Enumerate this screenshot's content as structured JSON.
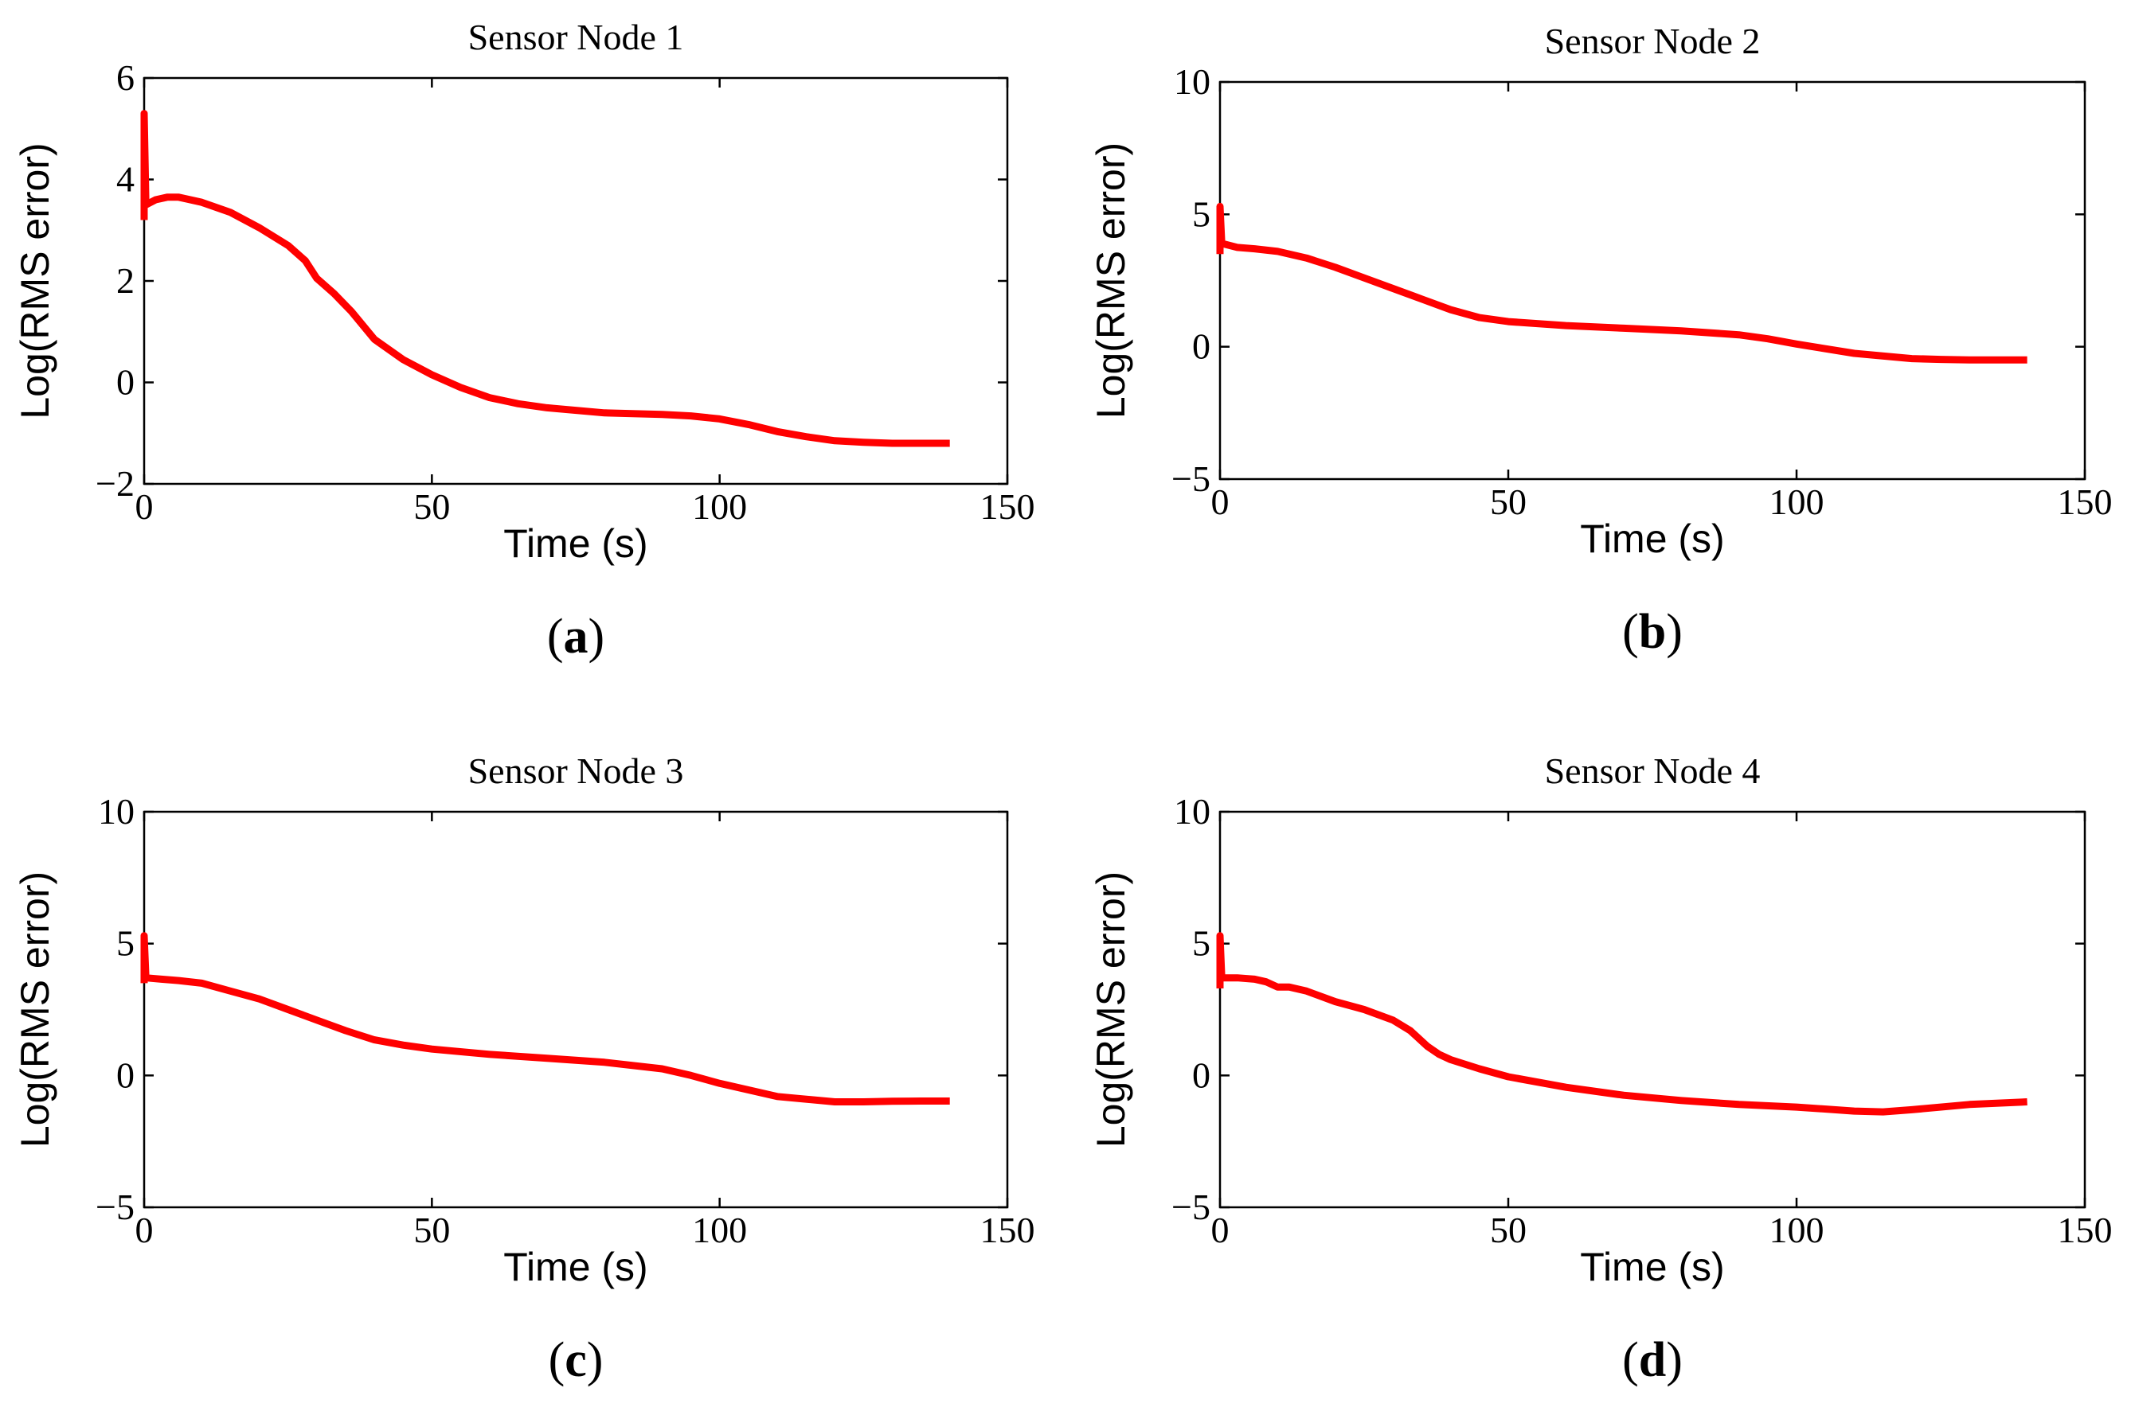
{
  "colors": {
    "series": "#ff0000",
    "axes": "#000000",
    "background": "#ffffff"
  },
  "chart_data": [
    {
      "type": "line",
      "title": "Sensor Node 1",
      "xlabel": "Time (s)",
      "ylabel": "Log(RMS error)",
      "panel_label": "a",
      "xlim": [
        0,
        150
      ],
      "ylim": [
        -2,
        6
      ],
      "xticks": [
        0,
        50,
        100,
        150
      ],
      "yticks": [
        -2,
        0,
        2,
        4,
        6
      ],
      "ytick_labels": [
        "−2",
        "0",
        "2",
        "4",
        "6"
      ],
      "grid": false,
      "series": [
        {
          "x": [
            0,
            0,
            0.3,
            0.3,
            2,
            4,
            6,
            10,
            15,
            20,
            25,
            28,
            30,
            33,
            36,
            40,
            45,
            50,
            55,
            60,
            65,
            70,
            80,
            90,
            95,
            100,
            105,
            110,
            115,
            120,
            125,
            130,
            135,
            140
          ],
          "y": [
            3.2,
            5.3,
            3.5,
            3.5,
            3.6,
            3.65,
            3.65,
            3.55,
            3.35,
            3.05,
            2.7,
            2.4,
            2.05,
            1.75,
            1.4,
            0.85,
            0.45,
            0.15,
            -0.1,
            -0.3,
            -0.42,
            -0.5,
            -0.6,
            -0.63,
            -0.66,
            -0.72,
            -0.83,
            -0.97,
            -1.07,
            -1.15,
            -1.18,
            -1.2,
            -1.2,
            -1.2
          ]
        }
      ]
    },
    {
      "type": "line",
      "title": "Sensor Node 2",
      "xlabel": "Time (s)",
      "ylabel": "Log(RMS error)",
      "panel_label": "b",
      "xlim": [
        0,
        150
      ],
      "ylim": [
        -5,
        10
      ],
      "xticks": [
        0,
        50,
        100,
        150
      ],
      "yticks": [
        -5,
        0,
        5,
        10
      ],
      "ytick_labels": [
        "−5",
        "0",
        "5",
        "10"
      ],
      "grid": false,
      "series": [
        {
          "x": [
            0,
            0,
            0.3,
            0.3,
            3,
            6,
            10,
            15,
            20,
            25,
            30,
            35,
            40,
            45,
            50,
            60,
            70,
            80,
            90,
            95,
            100,
            110,
            120,
            125,
            130,
            135,
            140
          ],
          "y": [
            3.5,
            5.3,
            3.9,
            3.9,
            3.75,
            3.7,
            3.6,
            3.35,
            3.0,
            2.6,
            2.2,
            1.8,
            1.4,
            1.1,
            0.95,
            0.8,
            0.7,
            0.6,
            0.45,
            0.3,
            0.1,
            -0.25,
            -0.45,
            -0.48,
            -0.5,
            -0.5,
            -0.5
          ]
        }
      ]
    },
    {
      "type": "line",
      "title": "Sensor Node 3",
      "xlabel": "Time (s)",
      "ylabel": "Log(RMS error)",
      "panel_label": "c",
      "xlim": [
        0,
        150
      ],
      "ylim": [
        -5,
        10
      ],
      "xticks": [
        0,
        50,
        100,
        150
      ],
      "yticks": [
        -5,
        0,
        5,
        10
      ],
      "ytick_labels": [
        "−5",
        "0",
        "5",
        "10"
      ],
      "grid": false,
      "series": [
        {
          "x": [
            0,
            0,
            0.3,
            0.3,
            3,
            6,
            10,
            15,
            20,
            25,
            30,
            35,
            40,
            45,
            50,
            60,
            70,
            80,
            90,
            95,
            100,
            110,
            120,
            125,
            130,
            135,
            140
          ],
          "y": [
            3.5,
            5.3,
            3.7,
            3.7,
            3.65,
            3.6,
            3.5,
            3.2,
            2.9,
            2.5,
            2.1,
            1.7,
            1.35,
            1.15,
            1.0,
            0.8,
            0.65,
            0.5,
            0.25,
            0.0,
            -0.3,
            -0.8,
            -1.0,
            -1.0,
            -0.98,
            -0.97,
            -0.97
          ]
        }
      ]
    },
    {
      "type": "line",
      "title": "Sensor Node 4",
      "xlabel": "Time (s)",
      "ylabel": "Log(RMS error)",
      "panel_label": "d",
      "xlim": [
        0,
        150
      ],
      "ylim": [
        -5,
        10
      ],
      "xticks": [
        0,
        50,
        100,
        150
      ],
      "yticks": [
        -5,
        0,
        5,
        10
      ],
      "ytick_labels": [
        "−5",
        "0",
        "5",
        "10"
      ],
      "grid": false,
      "series": [
        {
          "x": [
            0,
            0,
            0.3,
            0.3,
            3,
            6,
            8,
            10,
            12,
            15,
            20,
            25,
            30,
            33,
            36,
            38,
            40,
            45,
            50,
            60,
            70,
            80,
            90,
            100,
            110,
            115,
            120,
            130,
            140
          ],
          "y": [
            3.3,
            5.3,
            3.7,
            3.7,
            3.7,
            3.65,
            3.55,
            3.35,
            3.35,
            3.2,
            2.8,
            2.5,
            2.1,
            1.7,
            1.1,
            0.8,
            0.6,
            0.25,
            -0.05,
            -0.45,
            -0.75,
            -0.95,
            -1.1,
            -1.2,
            -1.35,
            -1.38,
            -1.3,
            -1.1,
            -1.0
          ]
        }
      ]
    }
  ]
}
